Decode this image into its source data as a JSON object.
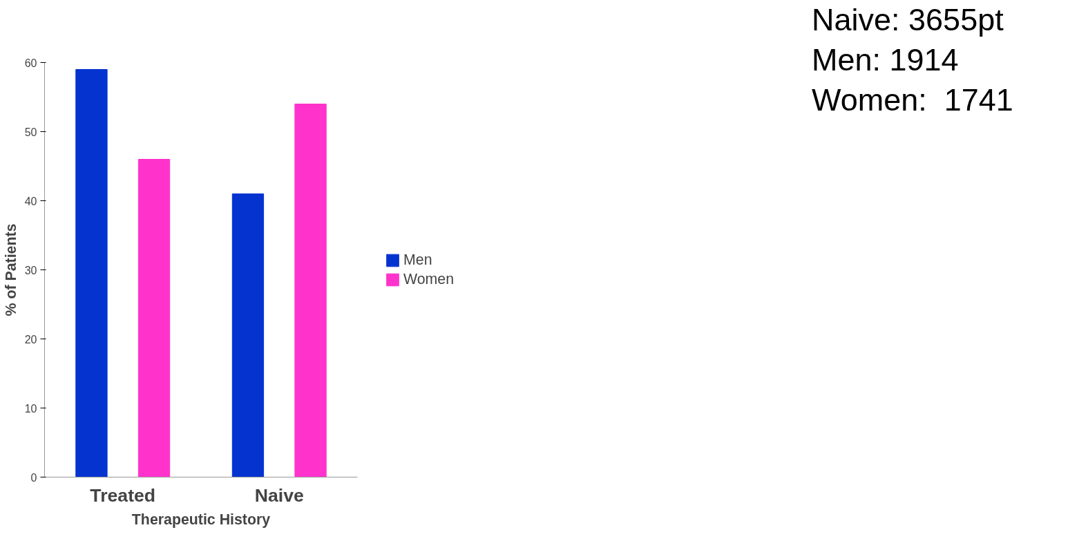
{
  "chart_data": {
    "type": "bar",
    "xlabel": "Therapeutic History",
    "ylabel": "% of Patients",
    "categories": [
      "Treated",
      "Naive"
    ],
    "series": [
      {
        "name": "Men",
        "color": "#0433d0",
        "values": [
          59,
          41
        ]
      },
      {
        "name": "Women",
        "color": "#ff33cc",
        "values": [
          46,
          54
        ]
      }
    ],
    "ylim": [
      0,
      60
    ],
    "yticks": [
      0,
      10,
      20,
      30,
      40,
      50,
      60
    ],
    "grid": false,
    "legend": "right",
    "annotations": [
      "Naive: 3655pt",
      "Men: 1914",
      "Women:  1741"
    ]
  }
}
